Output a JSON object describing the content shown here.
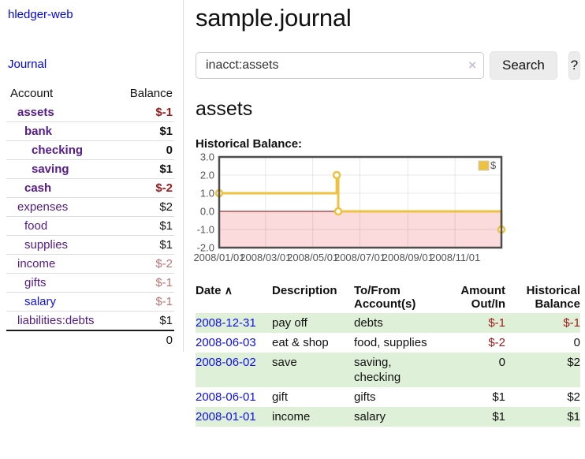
{
  "app": {
    "brand": "hledger-web",
    "journal_link": "Journal"
  },
  "colors": {
    "purple": "#551A8B",
    "blue": "#0F0FE8",
    "neg_strong": "#9E1A1A",
    "neg_soft": "#BC7474",
    "text": "#111111",
    "stripe_green": "#DFF0D8",
    "gold": "#EDC240",
    "pink_region": "#FBDBDB",
    "zero_line": "#8B0000",
    "chart_text": "#545454",
    "chart_border": "#4D4D4D"
  },
  "sidebar": {
    "header": {
      "account": "Account",
      "balance": "Balance"
    },
    "rows": [
      {
        "account": "assets",
        "indent": 1,
        "bold": true,
        "balance": "$-1",
        "balance_color": "neg_strong"
      },
      {
        "account": "bank",
        "indent": 2,
        "bold": true,
        "balance": "$1"
      },
      {
        "account": "checking",
        "indent": 3,
        "bold": true,
        "balance": "0"
      },
      {
        "account": "saving",
        "indent": 3,
        "bold": true,
        "balance": "$1"
      },
      {
        "account": "cash",
        "indent": 2,
        "bold": true,
        "balance": "$-2",
        "balance_color": "neg_strong"
      },
      {
        "account": "expenses",
        "indent": 1,
        "bold": false,
        "balance": "$2"
      },
      {
        "account": "food",
        "indent": 2,
        "bold": false,
        "balance": "$1"
      },
      {
        "account": "supplies",
        "indent": 2,
        "bold": false,
        "balance": "$1"
      },
      {
        "account": "income",
        "indent": 1,
        "bold": false,
        "balance": "$-2",
        "balance_color": "neg_soft"
      },
      {
        "account": "gifts",
        "indent": 2,
        "bold": false,
        "balance": "$-1",
        "balance_color": "neg_soft"
      },
      {
        "account": "salary",
        "indent": 2,
        "bold": false,
        "balance": "$-1",
        "balance_color": "neg_soft",
        "link_color": "blue"
      },
      {
        "account": "liabilities:debts",
        "indent": 1,
        "bold": false,
        "balance": "$1"
      }
    ],
    "total": "0"
  },
  "main": {
    "title": "sample.journal",
    "search": {
      "value": "inacct:assets",
      "clear_icon": "×",
      "button_label": "Search",
      "help_label": "?"
    },
    "account_heading": "assets",
    "chart_label": "Historical Balance:"
  },
  "chart_data": {
    "type": "line",
    "title": "Historical Balance",
    "step": true,
    "series": [
      {
        "name": "$",
        "points": [
          [
            "2008-01-01",
            1
          ],
          [
            "2008-06-01",
            2
          ],
          [
            "2008-06-03",
            0
          ],
          [
            "2008-12-31",
            -1
          ]
        ]
      }
    ],
    "x_start": "2008-01-01",
    "x_end": "2008-12-31",
    "x_ticks": [
      "2008/01/01",
      "2008/03/01",
      "2008/05/01",
      "2008/07/01",
      "2008/09/01",
      "2008/11/01"
    ],
    "y_ticks": [
      3,
      2,
      1,
      0,
      -1,
      -2
    ],
    "y_tick_labels": [
      "3.0",
      "2.0",
      "1.0",
      "0.0",
      "-1.0",
      "-2.0"
    ],
    "ylim": [
      -2,
      3
    ],
    "legend": {
      "label": "$",
      "position": "top-right"
    },
    "grid": true,
    "negative_region": true
  },
  "register": {
    "sort_indicator": "∧",
    "headers": {
      "date": "Date",
      "description": "Description",
      "accounts": "To/From Account(s)",
      "amount": "Amount Out/In",
      "balance": "Historical Balance"
    },
    "rows": [
      {
        "date": "2008-12-31",
        "description": "pay off",
        "accounts_lines": [
          "debts"
        ],
        "amount": "$-1",
        "amount_neg": true,
        "balance": "$-1",
        "balance_neg": true
      },
      {
        "date": "2008-06-03",
        "description": "eat & shop",
        "accounts_lines": [
          "food, supplies"
        ],
        "amount": "$-2",
        "amount_neg": true,
        "balance": "0",
        "balance_neg": false
      },
      {
        "date": "2008-06-02",
        "description": "save",
        "accounts_lines": [
          "saving,",
          "checking"
        ],
        "amount": "0",
        "amount_neg": false,
        "balance": "$2",
        "balance_neg": false
      },
      {
        "date": "2008-06-01",
        "description": "gift",
        "accounts_lines": [
          "gifts"
        ],
        "amount": "$1",
        "amount_neg": false,
        "balance": "$2",
        "balance_neg": false
      },
      {
        "date": "2008-01-01",
        "description": "income",
        "accounts_lines": [
          "salary"
        ],
        "amount": "$1",
        "amount_neg": false,
        "balance": "$1",
        "balance_neg": false
      }
    ]
  }
}
